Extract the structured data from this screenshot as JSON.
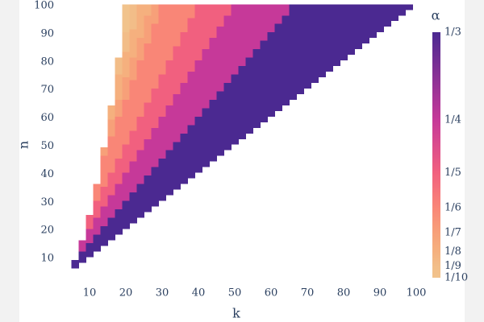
{
  "chart_data": {
    "type": "heatmap",
    "x_label": "k",
    "y_label": "n",
    "xlim": [
      5,
      101
    ],
    "ylim": [
      6,
      100.5
    ],
    "xticks": [
      10,
      20,
      30,
      40,
      50,
      60,
      70,
      80,
      90,
      100
    ],
    "yticks": [
      10,
      20,
      30,
      40,
      50,
      60,
      70,
      80,
      90,
      100
    ],
    "colorbar": {
      "title": "α",
      "clim": [
        0.1,
        0.3333
      ],
      "ticks": [
        {
          "value": 0.3333,
          "label": "1/3"
        },
        {
          "value": 0.25,
          "label": "1/4"
        },
        {
          "value": 0.2,
          "label": "1/5"
        },
        {
          "value": 0.1667,
          "label": "1/6"
        },
        {
          "value": 0.1429,
          "label": "1/7"
        },
        {
          "value": 0.125,
          "label": "1/8"
        },
        {
          "value": 0.1111,
          "label": "1/9"
        },
        {
          "value": 0.1,
          "label": "1/10"
        }
      ],
      "colors": [
        "#4b2991",
        "#c63999",
        "#f1607f",
        "#f98677",
        "#f7a079",
        "#f5b07e",
        "#f2bd88",
        "#f1c38c"
      ]
    },
    "columns": [
      {
        "k": 6,
        "segments": [
          [
            7,
            9,
            0.3333
          ]
        ]
      },
      {
        "k": 8,
        "segments": [
          [
            9,
            12,
            0.3333
          ],
          [
            13,
            16,
            0.25
          ]
        ]
      },
      {
        "k": 10,
        "segments": [
          [
            11,
            15,
            0.3333
          ],
          [
            16,
            20,
            0.25
          ],
          [
            21,
            25,
            0.2
          ]
        ]
      },
      {
        "k": 12,
        "segments": [
          [
            13,
            18,
            0.3333
          ],
          [
            19,
            24,
            0.25
          ],
          [
            25,
            30,
            0.2
          ],
          [
            31,
            36,
            0.1667
          ]
        ]
      },
      {
        "k": 14,
        "segments": [
          [
            15,
            21,
            0.3333
          ],
          [
            22,
            28,
            0.25
          ],
          [
            29,
            35,
            0.2
          ],
          [
            36,
            46,
            0.1667
          ],
          [
            47,
            49,
            0.1429
          ]
        ]
      },
      {
        "k": 16,
        "segments": [
          [
            17,
            24,
            0.3333
          ],
          [
            25,
            32,
            0.25
          ],
          [
            33,
            40,
            0.2
          ],
          [
            41,
            53,
            0.1667
          ],
          [
            54,
            59,
            0.1429
          ],
          [
            60,
            64,
            0.125
          ]
        ]
      },
      {
        "k": 18,
        "segments": [
          [
            19,
            27,
            0.3333
          ],
          [
            28,
            36,
            0.25
          ],
          [
            37,
            45,
            0.2
          ],
          [
            46,
            60,
            0.1667
          ],
          [
            61,
            66,
            0.1429
          ],
          [
            67,
            75,
            0.125
          ],
          [
            76,
            81,
            0.1111
          ]
        ]
      },
      {
        "k": 20,
        "segments": [
          [
            21,
            30,
            0.3333
          ],
          [
            31,
            40,
            0.25
          ],
          [
            41,
            50,
            0.2
          ],
          [
            51,
            66,
            0.1667
          ],
          [
            67,
            74,
            0.1429
          ],
          [
            75,
            83,
            0.125
          ],
          [
            84,
            90,
            0.1111
          ],
          [
            91,
            100,
            0.1
          ]
        ]
      },
      {
        "k": 22,
        "segments": [
          [
            23,
            33,
            0.3333
          ],
          [
            34,
            44,
            0.25
          ],
          [
            45,
            55,
            0.2
          ],
          [
            56,
            73,
            0.1667
          ],
          [
            74,
            81,
            0.1429
          ],
          [
            82,
            91,
            0.125
          ],
          [
            92,
            100,
            0.1111
          ]
        ]
      },
      {
        "k": 24,
        "segments": [
          [
            25,
            36,
            0.3333
          ],
          [
            37,
            48,
            0.25
          ],
          [
            49,
            60,
            0.2
          ],
          [
            61,
            80,
            0.1667
          ],
          [
            81,
            88,
            0.1429
          ],
          [
            89,
            100,
            0.125
          ]
        ]
      },
      {
        "k": 26,
        "segments": [
          [
            27,
            39,
            0.3333
          ],
          [
            40,
            52,
            0.25
          ],
          [
            53,
            65,
            0.2
          ],
          [
            66,
            86,
            0.1667
          ],
          [
            87,
            96,
            0.1429
          ],
          [
            97,
            100,
            0.125
          ]
        ]
      },
      {
        "k": 28,
        "segments": [
          [
            29,
            42,
            0.3333
          ],
          [
            43,
            56,
            0.25
          ],
          [
            57,
            70,
            0.2
          ],
          [
            71,
            93,
            0.1667
          ],
          [
            94,
            100,
            0.1429
          ]
        ]
      },
      {
        "k": 30,
        "segments": [
          [
            31,
            45,
            0.3333
          ],
          [
            46,
            60,
            0.25
          ],
          [
            61,
            75,
            0.2
          ],
          [
            76,
            100,
            0.1667
          ]
        ]
      },
      {
        "k": 32,
        "segments": [
          [
            33,
            48,
            0.3333
          ],
          [
            49,
            64,
            0.25
          ],
          [
            65,
            80,
            0.2
          ],
          [
            81,
            100,
            0.1667
          ]
        ]
      },
      {
        "k": 34,
        "segments": [
          [
            35,
            51,
            0.3333
          ],
          [
            52,
            68,
            0.25
          ],
          [
            69,
            85,
            0.2
          ],
          [
            86,
            100,
            0.1667
          ]
        ]
      },
      {
        "k": 36,
        "segments": [
          [
            37,
            54,
            0.3333
          ],
          [
            55,
            72,
            0.25
          ],
          [
            73,
            90,
            0.2
          ],
          [
            91,
            100,
            0.1667
          ]
        ]
      },
      {
        "k": 38,
        "segments": [
          [
            39,
            57,
            0.3333
          ],
          [
            58,
            76,
            0.25
          ],
          [
            77,
            95,
            0.2
          ],
          [
            96,
            100,
            0.1667
          ]
        ]
      },
      {
        "k": 40,
        "segments": [
          [
            41,
            60,
            0.3333
          ],
          [
            61,
            80,
            0.25
          ],
          [
            81,
            100,
            0.2
          ]
        ]
      },
      {
        "k": 42,
        "segments": [
          [
            43,
            63,
            0.3333
          ],
          [
            64,
            84,
            0.25
          ],
          [
            85,
            100,
            0.2
          ]
        ]
      },
      {
        "k": 44,
        "segments": [
          [
            45,
            66,
            0.3333
          ],
          [
            67,
            88,
            0.25
          ],
          [
            89,
            100,
            0.2
          ]
        ]
      },
      {
        "k": 46,
        "segments": [
          [
            47,
            69,
            0.3333
          ],
          [
            70,
            92,
            0.25
          ],
          [
            93,
            100,
            0.2
          ]
        ]
      },
      {
        "k": 48,
        "segments": [
          [
            49,
            72,
            0.3333
          ],
          [
            73,
            96,
            0.25
          ],
          [
            97,
            100,
            0.2
          ]
        ]
      },
      {
        "k": 50,
        "segments": [
          [
            51,
            75,
            0.3333
          ],
          [
            76,
            100,
            0.25
          ]
        ]
      },
      {
        "k": 52,
        "segments": [
          [
            53,
            78,
            0.3333
          ],
          [
            79,
            100,
            0.25
          ]
        ]
      },
      {
        "k": 54,
        "segments": [
          [
            55,
            81,
            0.3333
          ],
          [
            82,
            100,
            0.25
          ]
        ]
      },
      {
        "k": 56,
        "segments": [
          [
            57,
            84,
            0.3333
          ],
          [
            85,
            100,
            0.25
          ]
        ]
      },
      {
        "k": 58,
        "segments": [
          [
            59,
            87,
            0.3333
          ],
          [
            88,
            100,
            0.25
          ]
        ]
      },
      {
        "k": 60,
        "segments": [
          [
            61,
            90,
            0.3333
          ],
          [
            91,
            100,
            0.25
          ]
        ]
      },
      {
        "k": 62,
        "segments": [
          [
            63,
            93,
            0.3333
          ],
          [
            94,
            100,
            0.25
          ]
        ]
      },
      {
        "k": 64,
        "segments": [
          [
            65,
            96,
            0.3333
          ],
          [
            97,
            100,
            0.25
          ]
        ]
      },
      {
        "k": 66,
        "segments": [
          [
            67,
            100,
            0.3333
          ]
        ]
      },
      {
        "k": 68,
        "segments": [
          [
            69,
            100,
            0.3333
          ]
        ]
      },
      {
        "k": 70,
        "segments": [
          [
            71,
            100,
            0.3333
          ]
        ]
      },
      {
        "k": 72,
        "segments": [
          [
            73,
            100,
            0.3333
          ]
        ]
      },
      {
        "k": 74,
        "segments": [
          [
            75,
            100,
            0.3333
          ]
        ]
      },
      {
        "k": 76,
        "segments": [
          [
            77,
            100,
            0.3333
          ]
        ]
      },
      {
        "k": 78,
        "segments": [
          [
            79,
            100,
            0.3333
          ]
        ]
      },
      {
        "k": 80,
        "segments": [
          [
            81,
            100,
            0.3333
          ]
        ]
      },
      {
        "k": 82,
        "segments": [
          [
            83,
            100,
            0.3333
          ]
        ]
      },
      {
        "k": 84,
        "segments": [
          [
            85,
            100,
            0.3333
          ]
        ]
      },
      {
        "k": 86,
        "segments": [
          [
            87,
            100,
            0.3333
          ]
        ]
      },
      {
        "k": 88,
        "segments": [
          [
            89,
            100,
            0.3333
          ]
        ]
      },
      {
        "k": 90,
        "segments": [
          [
            91,
            100,
            0.3333
          ]
        ]
      },
      {
        "k": 92,
        "segments": [
          [
            93,
            100,
            0.3333
          ]
        ]
      },
      {
        "k": 94,
        "segments": [
          [
            95,
            100,
            0.3333
          ]
        ]
      },
      {
        "k": 96,
        "segments": [
          [
            97,
            100,
            0.3333
          ]
        ]
      },
      {
        "k": 98,
        "segments": [
          [
            99,
            100,
            0.3333
          ]
        ]
      }
    ]
  }
}
